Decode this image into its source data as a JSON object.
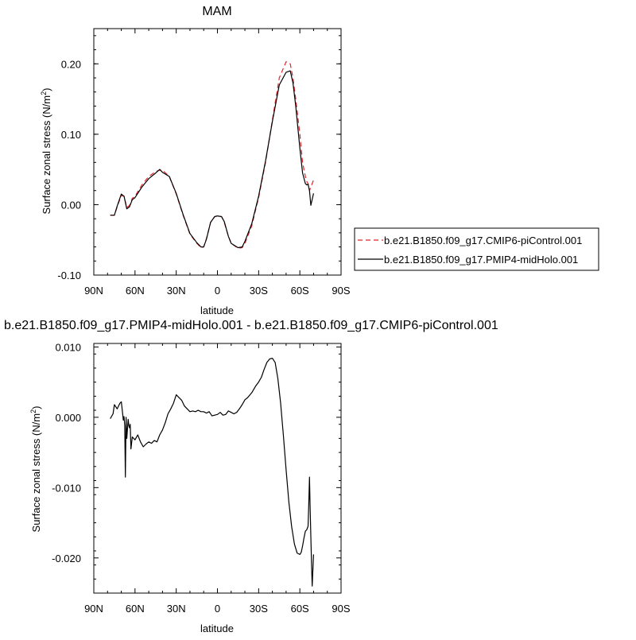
{
  "chart_data": [
    {
      "type": "line",
      "title": "MAM",
      "xlabel": "latitude",
      "ylabel": "Surface zonal stress (N/m",
      "ylabel_sup": "2",
      "ylabel_close": ")",
      "xlim": [
        90,
        -90
      ],
      "ylim": [
        -0.1,
        0.25
      ],
      "x_ticks": [
        90,
        60,
        30,
        0,
        -30,
        -60,
        -90
      ],
      "x_tick_labels": [
        "90N",
        "60N",
        "30N",
        "0",
        "30S",
        "60S",
        "90S"
      ],
      "y_ticks": [
        -0.1,
        0.0,
        0.1,
        0.2
      ],
      "y_tick_labels": [
        "-0.10",
        "0.00",
        "0.10",
        "0.20"
      ],
      "legend": "right-outside",
      "series": [
        {
          "name": "b.e21.B1850.f09_g17.CMIP6-piControl.001",
          "color": "#e8232a",
          "dash": "dashed",
          "x": [
            78,
            75,
            73,
            70,
            68,
            66,
            64,
            62,
            60,
            55,
            50,
            45,
            42,
            40,
            35,
            30,
            25,
            20,
            15,
            12,
            10,
            8,
            5,
            2,
            0,
            -3,
            -5,
            -8,
            -10,
            -15,
            -18,
            -20,
            -25,
            -30,
            -35,
            -40,
            -45,
            -50,
            -53,
            -55,
            -57,
            -60,
            -62,
            -64,
            -65,
            -66,
            -67,
            -68,
            -70
          ],
          "y": [
            -0.015,
            -0.015,
            -0.003,
            0.013,
            0.012,
            -0.004,
            -0.001,
            0.009,
            0.012,
            0.028,
            0.04,
            0.047,
            0.049,
            0.049,
            0.04,
            0.015,
            -0.015,
            -0.042,
            -0.055,
            -0.061,
            -0.06,
            -0.048,
            -0.025,
            -0.017,
            -0.016,
            -0.017,
            -0.025,
            -0.045,
            -0.055,
            -0.062,
            -0.061,
            -0.055,
            -0.03,
            0.01,
            0.06,
            0.12,
            0.18,
            0.203,
            0.2,
            0.18,
            0.15,
            0.1,
            0.06,
            0.04,
            0.033,
            0.03,
            0.02,
            0.025,
            0.035
          ]
        },
        {
          "name": "b.e21.B1850.f09_g17.PMIP4-midHolo.001",
          "color": "#000000",
          "dash": "solid",
          "x": [
            78,
            75,
            73,
            70,
            68,
            66,
            64,
            62,
            60,
            55,
            50,
            45,
            42,
            40,
            35,
            30,
            25,
            20,
            15,
            12,
            10,
            8,
            5,
            2,
            0,
            -3,
            -5,
            -8,
            -10,
            -15,
            -18,
            -20,
            -25,
            -30,
            -35,
            -40,
            -45,
            -50,
            -53,
            -55,
            -57,
            -60,
            -62,
            -64,
            -65,
            -66,
            -67,
            -68,
            -70
          ],
          "y": [
            -0.015,
            -0.015,
            -0.002,
            0.015,
            0.012,
            -0.006,
            -0.003,
            0.007,
            0.01,
            0.025,
            0.037,
            0.045,
            0.05,
            0.046,
            0.04,
            0.016,
            -0.014,
            -0.041,
            -0.054,
            -0.06,
            -0.06,
            -0.049,
            -0.025,
            -0.017,
            -0.016,
            -0.017,
            -0.024,
            -0.045,
            -0.055,
            -0.061,
            -0.06,
            -0.052,
            -0.027,
            0.012,
            0.062,
            0.118,
            0.17,
            0.188,
            0.19,
            0.173,
            0.14,
            0.08,
            0.045,
            0.03,
            0.028,
            0.029,
            0.02,
            -0.001,
            0.016
          ]
        }
      ]
    },
    {
      "type": "line",
      "title": "b.e21.B1850.f09_g17.PMIP4-midHolo.001 - b.e21.B1850.f09_g17.CMIP6-piControl.001",
      "xlabel": "latitude",
      "ylabel": "Surface zonal stress (N/m",
      "ylabel_sup": "2",
      "ylabel_close": ")",
      "xlim": [
        90,
        -90
      ],
      "ylim": [
        -0.025,
        0.0105
      ],
      "x_ticks": [
        90,
        60,
        30,
        0,
        -30,
        -60,
        -90
      ],
      "x_tick_labels": [
        "90N",
        "60N",
        "30N",
        "0",
        "30S",
        "60S",
        "90S"
      ],
      "y_ticks": [
        -0.02,
        -0.01,
        0.0,
        0.01
      ],
      "y_tick_labels": [
        "-0.020",
        "-0.010",
        "0.000",
        "0.010"
      ],
      "series": [
        {
          "color": "#000000",
          "dash": "solid",
          "x": [
            78,
            76,
            75,
            73,
            71,
            70,
            69,
            68.5,
            68,
            67.5,
            67,
            66.5,
            66,
            65,
            64.5,
            64,
            63.5,
            63,
            62,
            60,
            58,
            56,
            54,
            52,
            50,
            48,
            46,
            44,
            42,
            40,
            38,
            36,
            34,
            32,
            30,
            28,
            26,
            24,
            22,
            20,
            18,
            16,
            14,
            12,
            10,
            8,
            6,
            4,
            2,
            0,
            -2,
            -4,
            -6,
            -8,
            -10,
            -12,
            -14,
            -16,
            -18,
            -20,
            -22,
            -25,
            -28,
            -30,
            -32,
            -34,
            -36,
            -38,
            -40,
            -42,
            -44,
            -46,
            -48,
            -50,
            -52,
            -54,
            -56,
            -58,
            -60,
            -61,
            -62,
            -63,
            -64,
            -65,
            -66,
            -66.5,
            -67,
            -67.5,
            -68,
            -68.5,
            -69,
            -70
          ],
          "y": [
            -0.0002,
            0.0005,
            0.0018,
            0.0012,
            0.002,
            0.0022,
            0.0005,
            -0.0004,
            0.0001,
            -0.0012,
            -0.0085,
            0.0,
            -0.003,
            -0.0003,
            -0.0012,
            -0.0015,
            -0.001,
            -0.0045,
            -0.0028,
            -0.0032,
            -0.0025,
            -0.0035,
            -0.0042,
            -0.0038,
            -0.0035,
            -0.0037,
            -0.0033,
            -0.0035,
            -0.0025,
            -0.0018,
            -0.0008,
            0.0005,
            0.0012,
            0.002,
            0.0032,
            0.0028,
            0.0024,
            0.0016,
            0.0012,
            0.0008,
            0.0009,
            0.0008,
            0.001,
            0.0008,
            0.0008,
            0.0006,
            0.0008,
            0.0002,
            0.0003,
            0.0004,
            0.0007,
            0.0003,
            0.0004,
            0.0009,
            0.0007,
            0.0005,
            0.0007,
            0.0012,
            0.0018,
            0.0025,
            0.0028,
            0.0035,
            0.0045,
            0.005,
            0.0057,
            0.0068,
            0.0078,
            0.0083,
            0.0084,
            0.0078,
            0.0055,
            0.002,
            -0.0025,
            -0.0075,
            -0.012,
            -0.0155,
            -0.018,
            -0.0193,
            -0.0195,
            -0.0192,
            -0.0183,
            -0.0172,
            -0.0162,
            -0.016,
            -0.0155,
            -0.0123,
            -0.0085,
            -0.0128,
            -0.017,
            -0.021,
            -0.024,
            -0.0195
          ]
        }
      ]
    }
  ]
}
